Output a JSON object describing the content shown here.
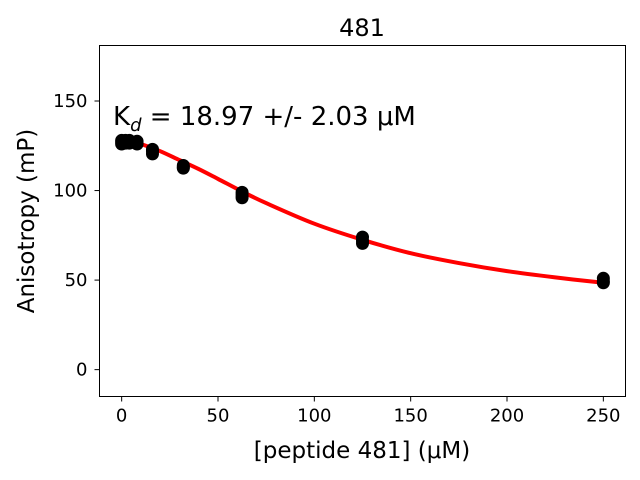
{
  "chart_data": {
    "type": "scatter",
    "title": "481",
    "xlabel": "[peptide 481] (μM)",
    "ylabel": "Anisotropy (mP)",
    "annotation": {
      "prefix": "K",
      "subscript": "d",
      "text": " = 18.97 +/- 2.03 μM"
    },
    "xlim": [
      -11.5,
      261.5
    ],
    "ylim": [
      -15,
      181
    ],
    "xticks": [
      0,
      50,
      100,
      150,
      200,
      250
    ],
    "yticks": [
      0,
      50,
      100,
      150
    ],
    "grid": false,
    "legend": "none",
    "colors": {
      "points": "#000000",
      "fit": "#ff0000"
    },
    "series": [
      {
        "kind": "points",
        "x": [
          0,
          0,
          0,
          2,
          2,
          2,
          4,
          4,
          4,
          8,
          8,
          8,
          16,
          16,
          16,
          32,
          32,
          32,
          62.5,
          62.5,
          62.5,
          125,
          125,
          125,
          250,
          250,
          250
        ],
        "y": [
          128,
          127,
          126,
          128,
          127,
          126.5,
          128,
          127.5,
          126.5,
          127.5,
          126.5,
          126,
          123,
          122,
          120.5,
          114,
          113,
          112.5,
          99,
          97.5,
          96,
          74,
          72,
          70.5,
          51,
          49.5,
          48.5
        ]
      },
      {
        "kind": "fit",
        "x": [
          0,
          5,
          10,
          20,
          30,
          40,
          50,
          62.5,
          75,
          100,
          125,
          150,
          175,
          200,
          225,
          250
        ],
        "y": [
          128,
          127.2,
          126,
          122,
          117,
          112,
          106.5,
          99.5,
          93,
          81.5,
          72.5,
          65,
          59.5,
          55,
          51.5,
          48.5
        ]
      }
    ]
  }
}
